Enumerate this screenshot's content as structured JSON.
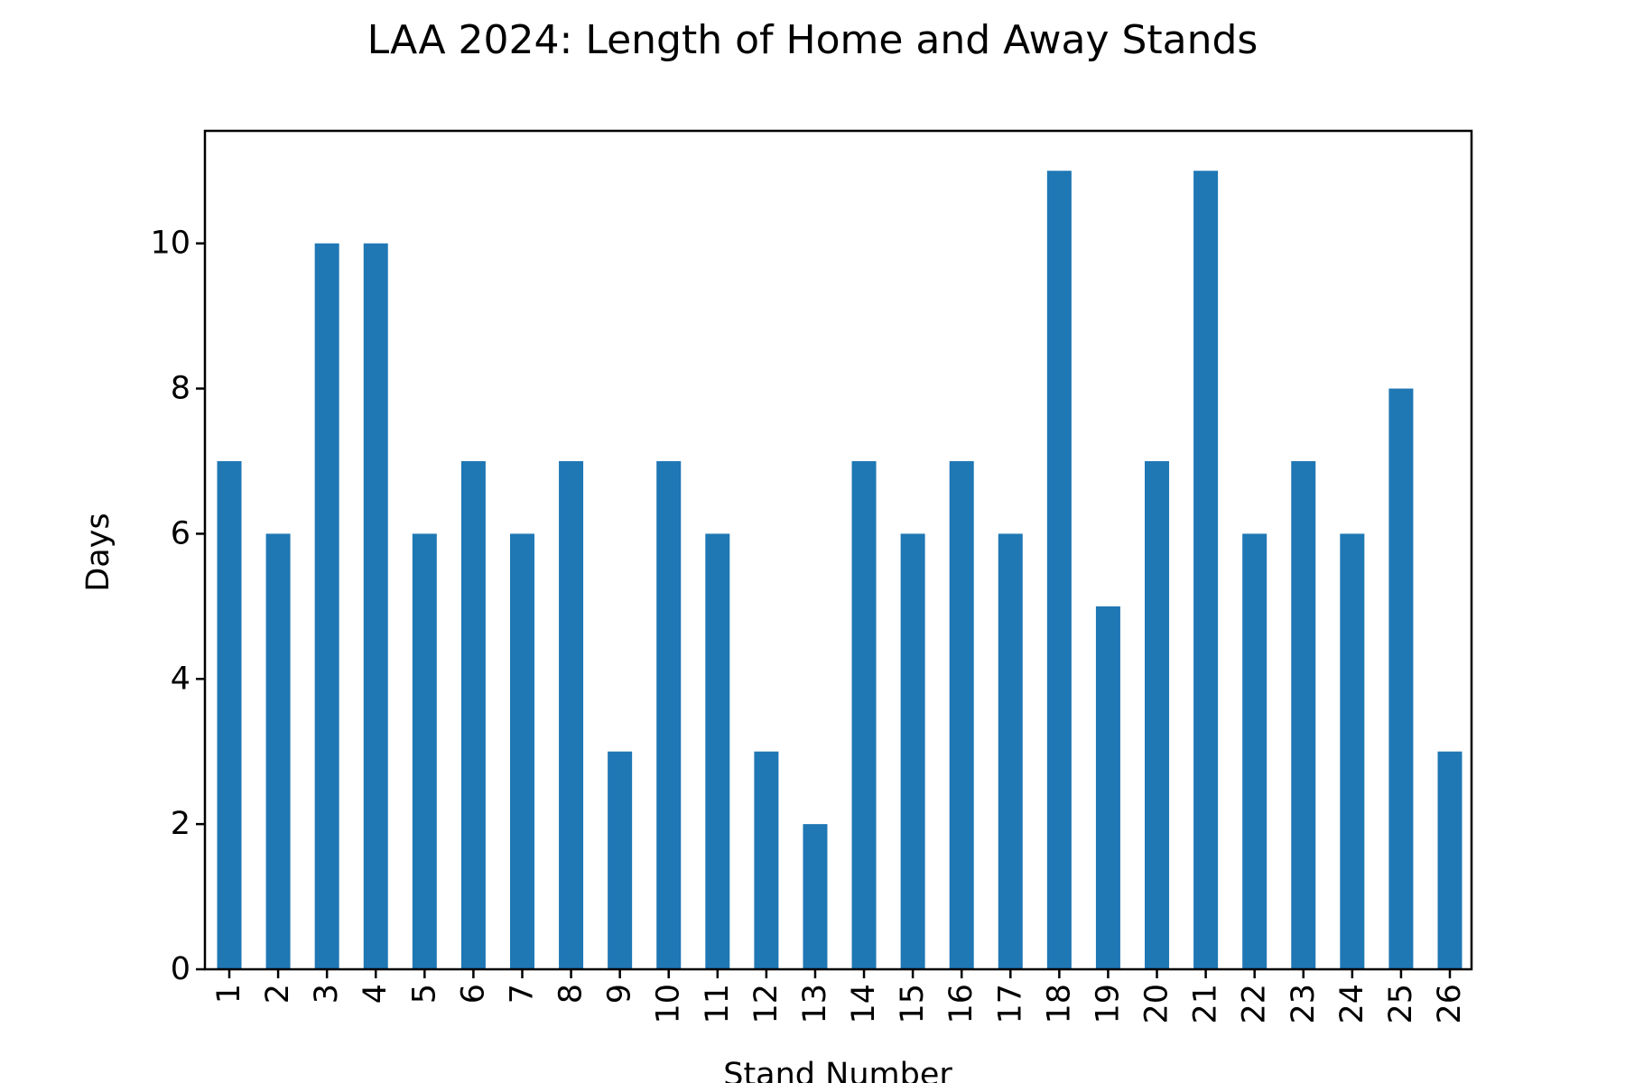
{
  "chart_data": {
    "type": "bar",
    "title": "LAA 2024: Length of Home and Away Stands",
    "xlabel": "Stand Number",
    "ylabel": "Days",
    "categories": [
      "1",
      "2",
      "3",
      "4",
      "5",
      "6",
      "7",
      "8",
      "9",
      "10",
      "11",
      "12",
      "13",
      "14",
      "15",
      "16",
      "17",
      "18",
      "19",
      "20",
      "21",
      "22",
      "23",
      "24",
      "25",
      "26"
    ],
    "values": [
      7,
      6,
      10,
      10,
      6,
      7,
      6,
      7,
      3,
      7,
      6,
      3,
      2,
      7,
      6,
      7,
      6,
      11,
      5,
      7,
      11,
      6,
      7,
      6,
      8,
      3
    ],
    "ylim": [
      0,
      11.55
    ],
    "yticks": [
      0,
      2,
      4,
      6,
      8,
      10
    ],
    "grid": false,
    "legend": "none",
    "bar_color": "#1f77b4"
  }
}
